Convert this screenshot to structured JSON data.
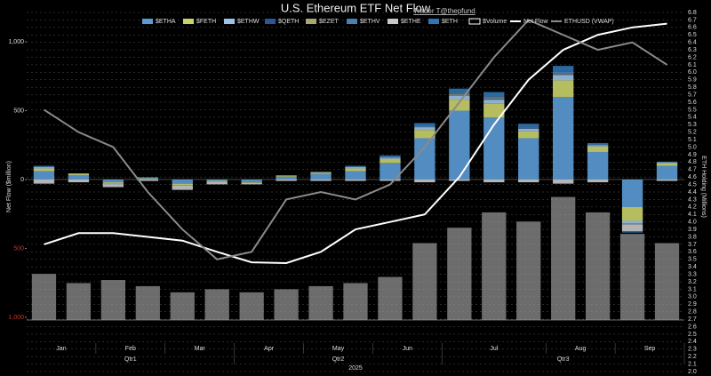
{
  "chart_data": {
    "type": "bar",
    "title": "U.S. Ethereum ETF Net Flow",
    "subtitle": "Trader T@thepfund",
    "ylabel": "Net Flow ($million)",
    "y2label": "ETH Holding (Millions)",
    "categories": [
      null,
      null,
      null,
      null,
      null,
      null,
      null,
      null,
      null,
      null,
      null,
      null,
      null,
      null,
      null,
      null,
      null,
      null,
      null
    ],
    "months": [
      {
        "label": "Jan",
        "n": 2
      },
      {
        "label": "Feb",
        "n": 2
      },
      {
        "label": "Mar",
        "n": 2
      },
      {
        "label": "Apr",
        "n": 2
      },
      {
        "label": "May",
        "n": 2
      },
      {
        "label": "Jun",
        "n": 2
      },
      {
        "label": "Jul",
        "n": 3
      },
      {
        "label": "Aug",
        "n": 2
      },
      {
        "label": "Sep",
        "n": 2
      }
    ],
    "quarters": [
      {
        "label": "Qtr1",
        "n": 6
      },
      {
        "label": "Qtr2",
        "n": 6
      },
      {
        "label": "Qtr3",
        "n": 7
      }
    ],
    "year": "2025",
    "ylim": [
      -1394,
      1213
    ],
    "yticks": [
      {
        "value": 1000,
        "label": "1,000"
      },
      500,
      0,
      {
        "value": -500,
        "label": "500",
        "color": "#c0392b"
      },
      {
        "value": -1000,
        "label": "1,000",
        "color": "#c0392b"
      }
    ],
    "y2lim": [
      2.0,
      6.8
    ],
    "y2ticks": [
      {
        "value": 2,
        "label": "2.0"
      },
      2.1,
      2.2,
      2.3,
      2.4,
      2.5,
      2.6,
      2.7,
      2.8,
      2.9,
      {
        "value": 3,
        "label": "3.0"
      },
      3.1,
      3.2,
      3.3,
      3.4,
      3.5,
      3.6,
      3.7,
      3.8,
      3.9,
      {
        "value": 4,
        "label": "4.0"
      },
      4.1,
      4.2,
      4.3,
      4.4,
      4.5,
      4.6,
      4.7,
      4.8,
      4.9,
      {
        "value": 5,
        "label": "5.0"
      },
      5.1,
      5.2,
      5.3,
      5.4,
      5.5,
      5.6,
      5.7,
      5.8,
      5.9,
      {
        "value": 6,
        "label": "6.0"
      },
      6.1,
      6.2,
      6.3,
      6.4,
      6.5,
      6.6,
      6.7,
      6.8
    ],
    "y3lim": [
      0,
      10000
    ],
    "grid": true,
    "series": [
      {
        "name": "$ETHA",
        "color": "#5b9bd5",
        "kind": "bar",
        "values": [
          60,
          30,
          -20,
          10,
          -30,
          -10,
          -20,
          20,
          40,
          60,
          120,
          300,
          500,
          450,
          300,
          600,
          200,
          -200,
          100
        ]
      },
      {
        "name": "$FETH",
        "color": "#c9d26a",
        "kind": "bar",
        "values": [
          20,
          10,
          -10,
          5,
          -10,
          -5,
          -5,
          5,
          10,
          20,
          30,
          60,
          80,
          100,
          50,
          120,
          40,
          -100,
          20
        ]
      },
      {
        "name": "$ETHW",
        "color": "#9dc3e6",
        "kind": "bar",
        "values": [
          10,
          5,
          -5,
          0,
          -5,
          0,
          0,
          5,
          5,
          10,
          10,
          20,
          30,
          30,
          20,
          40,
          10,
          -20,
          5
        ]
      },
      {
        "name": "$QETH",
        "color": "#2e5597",
        "kind": "bar",
        "values": [
          0,
          0,
          0,
          0,
          0,
          0,
          0,
          0,
          0,
          0,
          0,
          0,
          5,
          5,
          5,
          5,
          0,
          0,
          0
        ]
      },
      {
        "name": "$EZET",
        "color": "#a9a66f",
        "kind": "bar",
        "values": [
          0,
          0,
          0,
          0,
          0,
          0,
          0,
          0,
          0,
          0,
          0,
          0,
          5,
          5,
          0,
          5,
          0,
          0,
          0
        ]
      },
      {
        "name": "$ETHV",
        "color": "#4a7fb0",
        "kind": "bar",
        "values": [
          5,
          0,
          0,
          0,
          0,
          0,
          0,
          0,
          0,
          5,
          5,
          10,
          10,
          15,
          10,
          15,
          5,
          -5,
          0
        ]
      },
      {
        "name": "$ETHE",
        "color": "#c8c8c8",
        "kind": "bar",
        "values": [
          -30,
          -20,
          -20,
          -10,
          -30,
          -20,
          -10,
          -10,
          -10,
          -10,
          -10,
          -20,
          -10,
          -20,
          -20,
          -30,
          -20,
          -50,
          -10
        ]
      },
      {
        "name": "$ETH",
        "color": "#2f75b5",
        "kind": "bar",
        "values": [
          5,
          0,
          0,
          0,
          0,
          0,
          0,
          0,
          0,
          5,
          10,
          20,
          30,
          30,
          20,
          40,
          10,
          -10,
          5
        ]
      },
      {
        "name": "$Volume",
        "color": "#9a9a9a",
        "kind": "volume",
        "axis": "y3",
        "values": [
          1500,
          1200,
          1300,
          1100,
          900,
          1000,
          900,
          1000,
          1100,
          1200,
          1400,
          2500,
          3000,
          3500,
          3200,
          4000,
          3500,
          2800,
          2500
        ]
      },
      {
        "name": "Net Flow",
        "color": "#ffffff",
        "kind": "line",
        "axis": "y2",
        "values": [
          3.7,
          3.85,
          3.85,
          3.8,
          3.75,
          3.6,
          3.46,
          3.45,
          3.6,
          3.9,
          4.0,
          4.1,
          4.6,
          5.3,
          5.9,
          6.3,
          6.5,
          6.6,
          6.65
        ]
      },
      {
        "name": "ETHUSD (VWAP)",
        "color": "#8a8a8a",
        "kind": "line",
        "axis": "y2",
        "values": [
          5.5,
          5.2,
          5.0,
          4.4,
          3.9,
          3.5,
          3.6,
          4.3,
          4.4,
          4.3,
          4.5,
          5.0,
          5.6,
          6.2,
          6.7,
          6.5,
          6.3,
          6.4,
          6.1
        ]
      }
    ]
  }
}
